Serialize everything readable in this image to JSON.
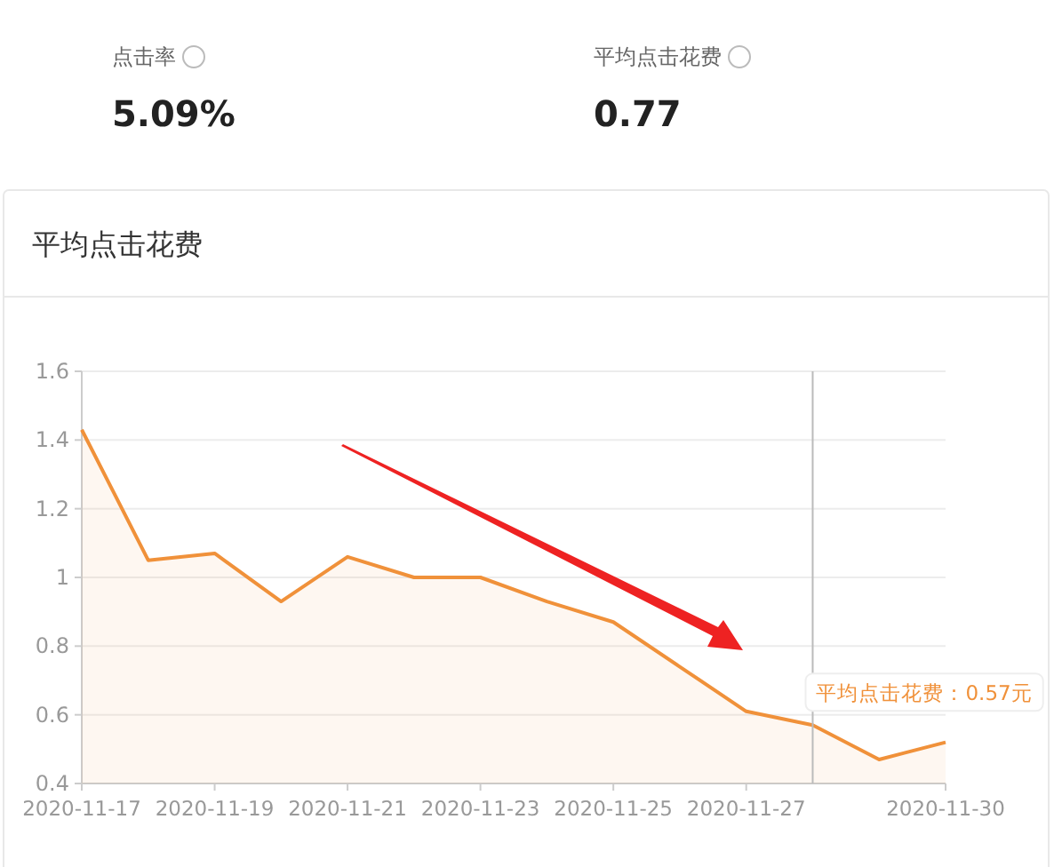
{
  "chart_data": {
    "type": "area",
    "title": "平均点击花费",
    "annotations": [
      "点击率",
      "5.09%",
      "平均点击花费",
      "0.77",
      {
        "text": "平均点击花费：0.57元",
        "x": "2020-11-28",
        "y": 0.57
      }
    ],
    "x": [
      "2020-11-17",
      "2020-11-18",
      "2020-11-19",
      "2020-11-20",
      "2020-11-21",
      "2020-11-22",
      "2020-11-23",
      "2020-11-24",
      "2020-11-25",
      "2020-11-26",
      "2020-11-27",
      "2020-11-28",
      "2020-11-29",
      "2020-11-30"
    ],
    "series": [
      {
        "color": "#f0913a",
        "values": [
          1.43,
          1.05,
          1.07,
          0.93,
          1.06,
          1.0,
          1.0,
          0.93,
          0.87,
          0.74,
          0.61,
          0.57,
          0.47,
          0.52
        ]
      }
    ],
    "xlim": [
      "2020-11-17",
      "2020-11-30"
    ],
    "xticks": [
      "2020-11-17",
      "2020-11-19",
      "2020-11-21",
      "2020-11-23",
      "2020-11-25",
      "2020-11-27",
      "2020-11-30"
    ],
    "ylim": [
      0.4,
      1.6
    ],
    "yticks": [
      0.4,
      0.6,
      0.8,
      1,
      1.2,
      1.4,
      1.6
    ],
    "ref_lines": [
      {
        "axis": "x",
        "value": "2020-11-28",
        "color": "#bbbbbb"
      }
    ],
    "grid": "y",
    "marker": "none",
    "line_style": "solid"
  }
}
